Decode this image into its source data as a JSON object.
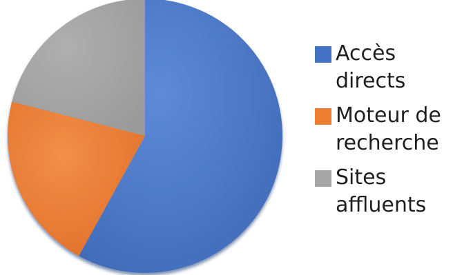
{
  "chart_data": {
    "type": "pie",
    "categories": [
      "Accès\ndirects",
      "Moteur de\nrecherche",
      "Sites\naffluents"
    ],
    "values": [
      58,
      21,
      21
    ],
    "colors": [
      "#4472C4",
      "#ED7D31",
      "#A5A5A5"
    ],
    "legend_position": "right",
    "title": ""
  }
}
